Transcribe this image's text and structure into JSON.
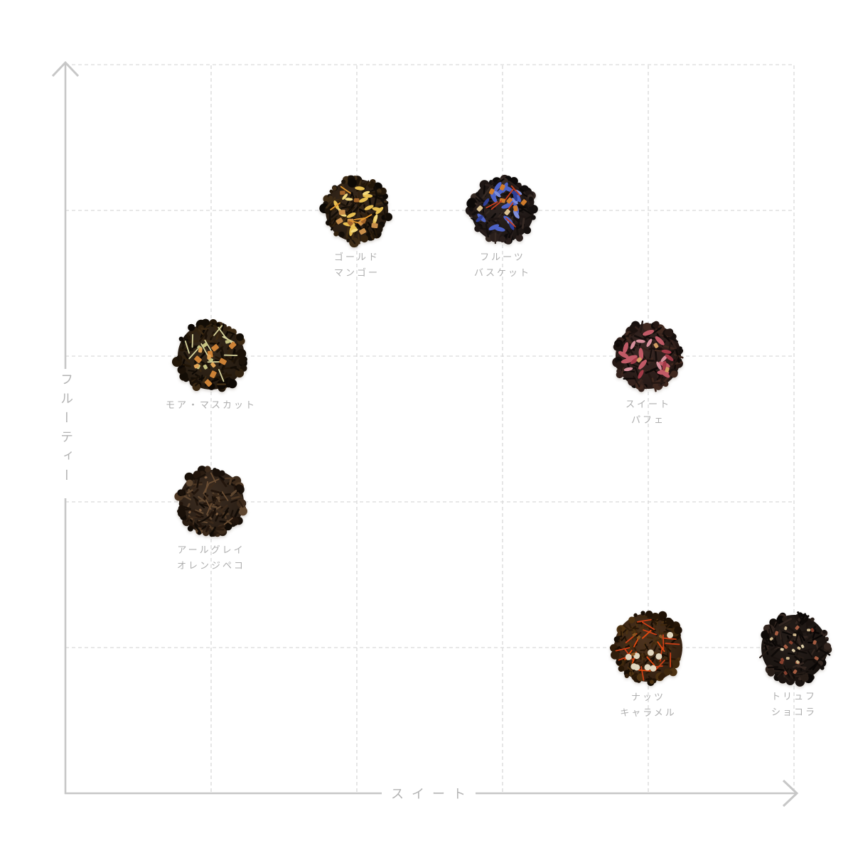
{
  "style": {
    "background": "#ffffff",
    "axis_color": "#c7c7c7",
    "grid_color": "#d9d9d9",
    "axis_label_color": "#b3b3b3",
    "point_label_color": "#aeaeae"
  },
  "chart_data": {
    "type": "scatter",
    "title": "",
    "xlabel": "スイート",
    "ylabel": "フルーティー",
    "x_range": [
      0,
      5
    ],
    "y_range": [
      0,
      5
    ],
    "grid": "dashed 5x5, solid L axes with arrowheads",
    "legend": "none",
    "points": [
      {
        "name": "gold-mango",
        "label_lines": [
          "ゴールド",
          "マンゴー"
        ],
        "x": 2,
        "y": 4,
        "diameter": 94,
        "leaf_style": "long",
        "base_color": "#20160d",
        "leaf_shades": [
          "#130d07",
          "#231709",
          "#33220f",
          "#1c130a",
          "#3e2c16",
          "#0d0905"
        ],
        "speckles": [
          {
            "color": "#e9c052",
            "shape": "petal",
            "count": 13,
            "size": 7
          },
          {
            "color": "#f4da7e",
            "shape": "petal",
            "count": 7,
            "size": 5.5
          },
          {
            "color": "#c98f4b",
            "shape": "chunk",
            "count": 6,
            "size": 9
          },
          {
            "color": "#a2632a",
            "shape": "chunk",
            "count": 4,
            "size": 7.5
          },
          {
            "color": "#e0962f",
            "shape": "strand",
            "count": 5,
            "size": 5
          }
        ]
      },
      {
        "name": "fruit-basket",
        "label_lines": [
          "フルーツ",
          "バスケット"
        ],
        "x": 3,
        "y": 4,
        "diameter": 94,
        "leaf_style": "long",
        "base_color": "#17110f",
        "leaf_shades": [
          "#120e0e",
          "#1e1614",
          "#2a1f1c",
          "#15100e",
          "#0c0908",
          "#362a24"
        ],
        "speckles": [
          {
            "color": "#4d63c6",
            "shape": "petal",
            "count": 15,
            "size": 8
          },
          {
            "color": "#7e8edb",
            "shape": "petal",
            "count": 6,
            "size": 6
          },
          {
            "color": "#2e3f96",
            "shape": "petal",
            "count": 5,
            "size": 6.5
          },
          {
            "color": "#d07c2c",
            "shape": "chunk",
            "count": 6,
            "size": 8
          },
          {
            "color": "#c33f1f",
            "shape": "strand",
            "count": 6,
            "size": 5.5
          },
          {
            "color": "#dcc394",
            "shape": "chunk",
            "count": 2,
            "size": 8
          }
        ]
      },
      {
        "name": "more-muscat",
        "label_lines": [
          "モア・マスカット"
        ],
        "x": 1,
        "y": 3,
        "diameter": 100,
        "leaf_style": "medium",
        "base_color": "#1e150c",
        "leaf_shades": [
          "#130d06",
          "#221608",
          "#312210",
          "#1a1108",
          "#0d0804",
          "#3c2a14"
        ],
        "speckles": [
          {
            "color": "#d6d29b",
            "shape": "strand",
            "count": 12,
            "size": 5.5
          },
          {
            "color": "#c5c17f",
            "shape": "chunk",
            "count": 6,
            "size": 6.5
          },
          {
            "color": "#cd8236",
            "shape": "chunk",
            "count": 7,
            "size": 9.5
          },
          {
            "color": "#e0a457",
            "shape": "chunk",
            "count": 4,
            "size": 7
          }
        ]
      },
      {
        "name": "sweet-parfait",
        "label_lines": [
          "スイート",
          "パフェ"
        ],
        "x": 4,
        "y": 3,
        "diameter": 98,
        "leaf_style": "long",
        "base_color": "#1f1411",
        "leaf_shades": [
          "#150e0c",
          "#241713",
          "#33211c",
          "#1b120f",
          "#0e0907",
          "#40281f"
        ],
        "speckles": [
          {
            "color": "#c05a66",
            "shape": "petal",
            "count": 11,
            "size": 8.5
          },
          {
            "color": "#d68f9b",
            "shape": "petal",
            "count": 6,
            "size": 6.5
          },
          {
            "color": "#a23a47",
            "shape": "petal",
            "count": 5,
            "size": 7
          },
          {
            "color": "#d29e63",
            "shape": "chunk",
            "count": 3,
            "size": 7
          }
        ]
      },
      {
        "name": "earl-grey-orange-pekoe",
        "label_lines": [
          "アールグレイ",
          "オレンジペコ"
        ],
        "x": 1,
        "y": 2,
        "diameter": 97,
        "leaf_style": "medium",
        "base_color": "#221810",
        "leaf_shades": [
          "#191009",
          "#2a1c11",
          "#3c2a1b",
          "#22150c",
          "#110b06",
          "#4e3824",
          "#5f4730"
        ],
        "speckles": [
          {
            "color": "#6b4e33",
            "shape": "strand",
            "count": 8,
            "size": 4.5
          },
          {
            "color": "#7d5c3e",
            "shape": "chunk",
            "count": 4,
            "size": 4
          }
        ]
      },
      {
        "name": "nuts-caramel",
        "label_lines": [
          "ナッツ",
          "キャラメル"
        ],
        "x": 4,
        "y": 1,
        "diameter": 102,
        "leaf_style": "fine",
        "base_color": "#2c1b0d",
        "leaf_shades": [
          "#1f1206",
          "#2f1c0a",
          "#3f280e",
          "#271707",
          "#160d04",
          "#4d3212"
        ],
        "speckles": [
          {
            "color": "#cb3f16",
            "shape": "strand",
            "count": 15,
            "size": 6
          },
          {
            "color": "#e4490f",
            "shape": "strand",
            "count": 7,
            "size": 5
          },
          {
            "color": "#e2d7bf",
            "shape": "dot",
            "count": 9,
            "size": 4.5
          },
          {
            "color": "#8a5520",
            "shape": "chunk",
            "count": 4,
            "size": 5.5
          }
        ]
      },
      {
        "name": "truffe-chocolat",
        "label_lines": [
          "トリュフ",
          "ショコラ"
        ],
        "x": 5,
        "y": 1,
        "diameter": 99,
        "leaf_style": "long",
        "base_color": "#130e0b",
        "leaf_shades": [
          "#0e0a08",
          "#1a1310",
          "#271d17",
          "#120d0a",
          "#090605",
          "#332620"
        ],
        "speckles": [
          {
            "color": "#a55c41",
            "shape": "chunk",
            "count": 7,
            "size": 6
          },
          {
            "color": "#cdb68c",
            "shape": "chunk",
            "count": 7,
            "size": 5
          },
          {
            "color": "#86402e",
            "shape": "chunk",
            "count": 5,
            "size": 5.5
          },
          {
            "color": "#dbcba6",
            "shape": "chunk",
            "count": 3,
            "size": 5
          }
        ]
      }
    ]
  }
}
